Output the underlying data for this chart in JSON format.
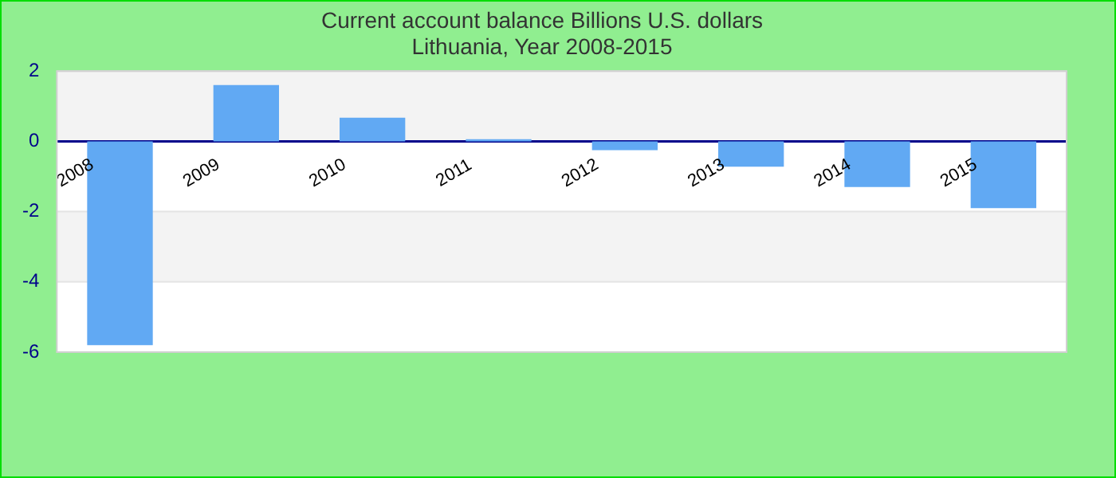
{
  "chart_data": {
    "type": "bar",
    "title": "Current account balance Billions U.S. dollars",
    "subtitle": "Lithuania, Year 2008-2015",
    "categories": [
      "2008",
      "2009",
      "2010",
      "2011",
      "2012",
      "2013",
      "2014",
      "2015"
    ],
    "values": [
      -5.8,
      1.6,
      0.67,
      0.06,
      -0.25,
      -0.72,
      -1.3,
      -1.9
    ],
    "color": "#61a9f3",
    "ylim": [
      -6,
      2
    ],
    "yticks": [
      -6,
      -4,
      -2,
      0,
      2
    ],
    "grid": "y"
  }
}
